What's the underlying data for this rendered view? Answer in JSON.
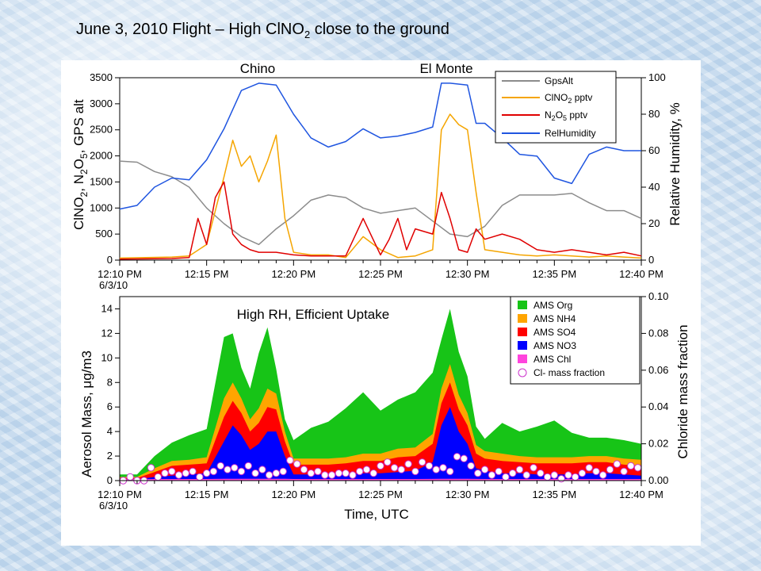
{
  "slide": {
    "title_main": "June 3, 2010 Flight – High ClNO",
    "title_sub": "2",
    "title_end": " close to the ground"
  },
  "colors": {
    "gps": "#8c8c8c",
    "clno2": "#f5a500",
    "n2o5": "#e00000",
    "rh": "#1f55e0",
    "org": "#17c417",
    "nh4": "#ffa500",
    "so4": "#ff0000",
    "no3": "#0000ff",
    "chl": "#ff44dd",
    "cl_marker": "#cc33cc"
  },
  "chart_data": [
    {
      "type": "line",
      "annotations": [
        "Chino",
        "El Monte"
      ],
      "x_ticks": [
        "12:10 PM",
        "12:15 PM",
        "12:20 PM",
        "12:25 PM",
        "12:30 PM",
        "12:35 PM",
        "12:40 PM"
      ],
      "x_date": "6/3/10",
      "xlim_min": [
        0,
        30
      ],
      "ylabel": "ClNO2, N2O5, GPS alt",
      "ylabel_parts": [
        "ClNO",
        "2",
        ", N",
        "2",
        "O",
        "5",
        ", GPS alt"
      ],
      "ylim": [
        0,
        3500
      ],
      "y_ticks": [
        "0",
        "500",
        "1000",
        "1500",
        "2000",
        "2500",
        "3000",
        "3500"
      ],
      "y2label": "Relative Humidity, %",
      "y2lim": [
        0,
        100
      ],
      "y2_ticks": [
        "0",
        "20",
        "40",
        "60",
        "80",
        "100"
      ],
      "legend": [
        "GpsAlt",
        "ClNO2 pptv",
        "N2O5 pptv",
        "RelHumidity"
      ],
      "legend_parts": {
        "clno2": [
          "ClNO",
          "2",
          " pptv"
        ],
        "n2o5": [
          "N",
          "2",
          "O",
          "5",
          " pptv"
        ]
      },
      "legend_position": "top-right",
      "series": [
        {
          "name": "GpsAlt",
          "axis": "left",
          "x": [
            0,
            1,
            2,
            3,
            4,
            5,
            6,
            7,
            8,
            9,
            10,
            11,
            12,
            13,
            14,
            15,
            16,
            17,
            18,
            19,
            20,
            21,
            22,
            23,
            24,
            25,
            26,
            27,
            28,
            29,
            30
          ],
          "y": [
            1900,
            1880,
            1700,
            1600,
            1400,
            1000,
            700,
            450,
            300,
            600,
            850,
            1150,
            1250,
            1200,
            1000,
            900,
            950,
            1000,
            750,
            500,
            450,
            650,
            1050,
            1250,
            1250,
            1250,
            1280,
            1100,
            950,
            950,
            800
          ]
        },
        {
          "name": "ClNO2 pptv",
          "axis": "left",
          "x": [
            0,
            3,
            4,
            5,
            6,
            6.5,
            7,
            7.5,
            8,
            8.5,
            9,
            9.5,
            10,
            11,
            12,
            13,
            14,
            15,
            16,
            17,
            18,
            18.5,
            19,
            19.5,
            20,
            20.5,
            21,
            22,
            23,
            24,
            25,
            26,
            27,
            28,
            29,
            30
          ],
          "y": [
            40,
            60,
            80,
            300,
            1600,
            2300,
            1800,
            2000,
            1500,
            1900,
            2400,
            800,
            150,
            100,
            100,
            50,
            450,
            200,
            50,
            80,
            200,
            2500,
            2800,
            2600,
            2500,
            1300,
            200,
            150,
            100,
            80,
            100,
            80,
            60,
            80,
            60,
            40
          ]
        },
        {
          "name": "N2O5 pptv",
          "axis": "left",
          "x": [
            0,
            3,
            4,
            4.5,
            5,
            5.5,
            6,
            6.5,
            7,
            7.5,
            8,
            9,
            10,
            11,
            12,
            13,
            14,
            15,
            15.5,
            16,
            16.5,
            17,
            18,
            18.5,
            19,
            19.5,
            20,
            20.5,
            21,
            22,
            23,
            24,
            25,
            26,
            27,
            28,
            29,
            30
          ],
          "y": [
            20,
            30,
            50,
            800,
            300,
            1200,
            1500,
            500,
            300,
            200,
            150,
            150,
            100,
            80,
            80,
            80,
            800,
            100,
            400,
            800,
            200,
            600,
            500,
            1300,
            800,
            200,
            150,
            600,
            400,
            500,
            400,
            200,
            150,
            200,
            150,
            100,
            150,
            80
          ]
        },
        {
          "name": "RelHumidity",
          "axis": "right",
          "x": [
            0,
            1,
            2,
            3,
            4,
            5,
            6,
            7,
            8,
            9,
            10,
            11,
            12,
            13,
            14,
            15,
            16,
            17,
            18,
            18.5,
            19,
            20,
            20.5,
            21,
            22,
            23,
            24,
            25,
            26,
            27,
            28,
            29,
            30
          ],
          "y": [
            28,
            30,
            40,
            45,
            44,
            55,
            72,
            93,
            97,
            96,
            80,
            67,
            62,
            65,
            72,
            67,
            68,
            70,
            73,
            97,
            97,
            96,
            75,
            75,
            67,
            58,
            57,
            45,
            42,
            58,
            62,
            60,
            60
          ]
        }
      ]
    },
    {
      "type": "area",
      "annotation": "High RH, Efficient Uptake",
      "x_ticks": [
        "12:10 PM",
        "12:15 PM",
        "12:20 PM",
        "12:25 PM",
        "12:30 PM",
        "12:35 PM",
        "12:40 PM"
      ],
      "x_date": "6/3/10",
      "xlabel": "Time, UTC",
      "ylabel": "Aerosol Mass, μg/m3",
      "ylabel_parts": [
        "Aerosol Mass, ",
        "μ",
        "g/m3"
      ],
      "ylim": [
        0,
        15
      ],
      "y_ticks": [
        "0",
        "2",
        "4",
        "6",
        "8",
        "10",
        "12",
        "14"
      ],
      "y2label": "Chloride mass fraction",
      "y2lim": [
        0,
        0.1
      ],
      "y2_ticks": [
        "0.00",
        "0.02",
        "0.04",
        "0.06",
        "0.08",
        "0.10"
      ],
      "legend": [
        "AMS Org",
        "AMS NH4",
        "AMS SO4",
        "AMS NO3",
        "AMS Chl",
        "Cl- mass fraction"
      ],
      "legend_position": "top-right",
      "x": [
        0,
        1,
        2,
        3,
        4,
        5,
        6,
        6.5,
        7,
        7.5,
        8,
        8.5,
        9,
        9.5,
        10,
        11,
        12,
        13,
        14,
        15,
        16,
        17,
        18,
        18.5,
        19,
        19.5,
        20,
        20.5,
        21,
        22,
        23,
        24,
        25,
        26,
        27,
        28,
        29,
        30
      ],
      "series": [
        {
          "name": "AMS NO3",
          "values": [
            0.1,
            0.1,
            0.3,
            0.4,
            0.5,
            0.6,
            3.2,
            4.5,
            3.7,
            2.5,
            3.0,
            4.0,
            4.0,
            2.0,
            0.5,
            0.5,
            0.5,
            0.5,
            0.6,
            0.6,
            0.7,
            0.8,
            1.5,
            4.5,
            6.0,
            4.0,
            3.0,
            1.0,
            0.8,
            0.6,
            0.6,
            0.5,
            0.5,
            0.5,
            0.6,
            0.6,
            0.5,
            0.4
          ]
        },
        {
          "name": "AMS SO4",
          "values": [
            0.1,
            0.1,
            0.4,
            0.8,
            0.8,
            0.8,
            2.0,
            2.0,
            1.8,
            1.5,
            1.7,
            2.0,
            1.8,
            1.2,
            0.8,
            0.8,
            0.8,
            0.9,
            1.0,
            1.0,
            1.2,
            1.2,
            1.5,
            1.8,
            2.0,
            1.8,
            1.5,
            1.2,
            1.0,
            1.0,
            0.9,
            0.9,
            0.9,
            0.9,
            0.9,
            0.9,
            0.8,
            0.8
          ]
        },
        {
          "name": "AMS NH4",
          "values": [
            0.1,
            0.1,
            0.3,
            0.4,
            0.4,
            0.5,
            1.5,
            1.5,
            1.2,
            1.0,
            1.2,
            1.5,
            1.3,
            0.8,
            0.5,
            0.5,
            0.5,
            0.5,
            0.6,
            0.6,
            0.7,
            0.7,
            0.8,
            1.2,
            1.5,
            1.2,
            1.0,
            0.7,
            0.6,
            0.6,
            0.5,
            0.5,
            0.5,
            0.5,
            0.5,
            0.5,
            0.5,
            0.5
          ]
        },
        {
          "name": "AMS Org",
          "values": [
            0.2,
            0.2,
            1.0,
            1.5,
            2.0,
            2.3,
            5.0,
            4.0,
            2.5,
            2.5,
            4.5,
            5.0,
            2.0,
            1.0,
            1.5,
            2.5,
            3.0,
            4.0,
            5.0,
            3.5,
            4.0,
            4.5,
            5.0,
            4.0,
            4.5,
            3.5,
            3.0,
            1.5,
            1.0,
            2.5,
            2.0,
            2.5,
            3.0,
            2.0,
            1.5,
            1.5,
            1.5,
            1.3
          ]
        },
        {
          "name": "AMS Chl",
          "values": [
            0.02,
            0.02,
            0.03,
            0.03,
            0.03,
            0.03,
            0.05,
            0.05,
            0.05,
            0.05,
            0.05,
            0.05,
            0.05,
            0.05,
            0.03,
            0.03,
            0.03,
            0.03,
            0.03,
            0.03,
            0.03,
            0.03,
            0.04,
            0.05,
            0.05,
            0.05,
            0.05,
            0.04,
            0.03,
            0.03,
            0.03,
            0.03,
            0.03,
            0.03,
            0.03,
            0.03,
            0.03,
            0.03
          ]
        }
      ],
      "cl_fraction": {
        "name": "Cl- mass fraction",
        "x": [
          0.2,
          0.6,
          1.0,
          1.4,
          1.8,
          2.2,
          2.6,
          3.0,
          3.4,
          3.8,
          4.2,
          4.6,
          5.0,
          5.4,
          5.8,
          6.2,
          6.6,
          7.0,
          7.4,
          7.8,
          8.2,
          8.6,
          9.0,
          9.4,
          9.8,
          10.2,
          10.6,
          11.0,
          11.4,
          11.8,
          12.2,
          12.6,
          13.0,
          13.4,
          13.8,
          14.2,
          14.6,
          15.0,
          15.4,
          15.8,
          16.2,
          16.6,
          17.0,
          17.4,
          17.8,
          18.2,
          18.6,
          19.0,
          19.4,
          19.8,
          20.2,
          20.6,
          21.0,
          21.4,
          21.8,
          22.2,
          22.6,
          23.0,
          23.4,
          23.8,
          24.2,
          24.6,
          25.0,
          25.4,
          25.8,
          26.2,
          26.6,
          27.0,
          27.4,
          27.8,
          28.2,
          28.6,
          29.0,
          29.4,
          29.8
        ],
        "y": [
          0.0,
          0.002,
          0.0,
          0.0,
          0.007,
          0.002,
          0.004,
          0.005,
          0.003,
          0.004,
          0.005,
          0.002,
          0.004,
          0.005,
          0.008,
          0.006,
          0.007,
          0.005,
          0.008,
          0.004,
          0.006,
          0.003,
          0.004,
          0.005,
          0.011,
          0.009,
          0.006,
          0.004,
          0.005,
          0.003,
          0.003,
          0.004,
          0.004,
          0.003,
          0.005,
          0.006,
          0.004,
          0.008,
          0.01,
          0.007,
          0.006,
          0.009,
          0.005,
          0.01,
          0.008,
          0.006,
          0.007,
          0.005,
          0.013,
          0.012,
          0.008,
          0.004,
          0.006,
          0.003,
          0.005,
          0.002,
          0.004,
          0.006,
          0.003,
          0.007,
          0.004,
          0.002,
          0.003,
          0.001,
          0.003,
          0.002,
          0.004,
          0.007,
          0.005,
          0.003,
          0.006,
          0.009,
          0.005,
          0.008,
          0.007
        ]
      }
    }
  ]
}
